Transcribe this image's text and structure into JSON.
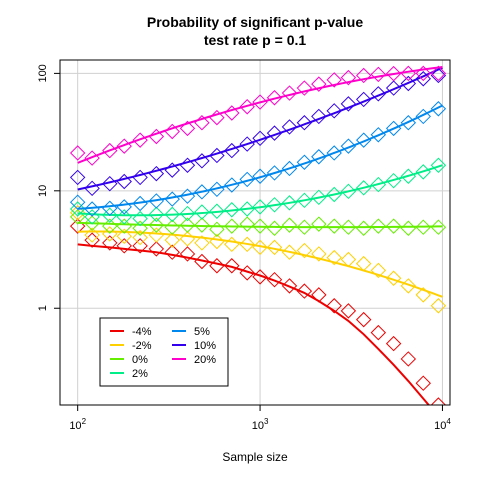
{
  "chart_data": {
    "type": "scatter",
    "title": "Probability of significant p-value",
    "subtitle": "test rate p = 0.1",
    "xlabel": "Sample size",
    "ylabel": "",
    "x_scale": "log",
    "y_scale": "log",
    "xlim": [
      80,
      11000
    ],
    "ylim": [
      0.15,
      130
    ],
    "x_ticks": [
      100,
      1000,
      10000
    ],
    "x_tick_labels": [
      {
        "base": "10",
        "exp": "2"
      },
      {
        "base": "10",
        "exp": "3"
      },
      {
        "base": "10",
        "exp": "4"
      }
    ],
    "y_ticks": [
      1,
      10,
      100
    ],
    "y_tick_labels": [
      "1",
      "10",
      "100"
    ],
    "grid": true,
    "legend": "bottom-left",
    "x": [
      100,
      120,
      150,
      180,
      220,
      270,
      330,
      400,
      480,
      580,
      700,
      850,
      1000,
      1200,
      1450,
      1750,
      2100,
      2550,
      3050,
      3700,
      4450,
      5400,
      6500,
      7850,
      9500
    ],
    "series": [
      {
        "name": "-4%",
        "color": "#ee0000",
        "points": [
          5.0,
          3.8,
          3.6,
          3.4,
          3.4,
          3.2,
          3.0,
          2.9,
          2.5,
          2.3,
          2.3,
          2.0,
          1.85,
          1.75,
          1.55,
          1.4,
          1.3,
          1.05,
          0.95,
          0.8,
          0.62,
          0.5,
          0.37,
          0.23,
          0.15
        ],
        "curve": [
          3.5,
          3.4,
          3.3,
          3.2,
          3.1,
          3.0,
          2.85,
          2.7,
          2.55,
          2.4,
          2.25,
          2.05,
          1.9,
          1.72,
          1.53,
          1.35,
          1.15,
          0.95,
          0.78,
          0.6,
          0.45,
          0.33,
          0.24,
          0.17,
          0.12
        ]
      },
      {
        "name": "-2%",
        "color": "#ffd000",
        "points": [
          6.5,
          4.2,
          4.3,
          4.1,
          4.0,
          4.2,
          3.8,
          3.9,
          3.6,
          3.7,
          3.5,
          3.5,
          3.3,
          3.3,
          3.0,
          3.1,
          2.9,
          2.7,
          2.6,
          2.4,
          2.1,
          1.8,
          1.55,
          1.3,
          1.05
        ]
      },
      {
        "name": "0%",
        "color": "#66ee00",
        "points": [
          6.0,
          5.3,
          5.0,
          5.0,
          4.8,
          5.1,
          4.9,
          5.1,
          5.1,
          4.7,
          5.0,
          5.2,
          5.0,
          4.8,
          5.1,
          4.9,
          5.2,
          5.0,
          4.9,
          4.8,
          5.0,
          5.0,
          4.8,
          4.9,
          4.9
        ]
      },
      {
        "name": "2%",
        "color": "#00ee88",
        "points": [
          7.0,
          6.0,
          6.2,
          6.0,
          5.8,
          6.3,
          6.3,
          6.4,
          6.6,
          6.7,
          6.9,
          7.0,
          7.3,
          7.6,
          7.9,
          8.3,
          8.8,
          9.3,
          9.9,
          10.6,
          11.3,
          12.2,
          13.3,
          14.5,
          16.5
        ]
      },
      {
        "name": "5%",
        "color": "#0088ee",
        "points": [
          8.0,
          7.0,
          7.1,
          7.3,
          7.8,
          8.2,
          8.5,
          9.0,
          9.8,
          10.3,
          11.2,
          12.5,
          13.3,
          14.2,
          15.5,
          17.5,
          19.5,
          21.0,
          24.0,
          27.0,
          30.0,
          34.0,
          38.0,
          43.0,
          50.0
        ]
      },
      {
        "name": "10%",
        "color": "#3300ee",
        "points": [
          13.0,
          10.5,
          11.5,
          12.0,
          13.0,
          14.0,
          15.0,
          16.5,
          18.0,
          20.0,
          22.0,
          25.0,
          28.0,
          31.0,
          35.0,
          38.0,
          43.0,
          48.0,
          55.0,
          60.0,
          67.0,
          75.0,
          82.0,
          90.0,
          96.0
        ]
      },
      {
        "name": "20%",
        "color": "#ff00cc",
        "points": [
          21.0,
          19.0,
          22.0,
          24.0,
          27.0,
          29.0,
          32.0,
          34.0,
          38.0,
          42.0,
          46.0,
          52.0,
          57.0,
          62.0,
          68.0,
          75.0,
          81.0,
          88.0,
          92.0,
          96.0,
          98.0,
          99.5,
          100.0,
          100.0,
          100.0
        ]
      }
    ]
  }
}
